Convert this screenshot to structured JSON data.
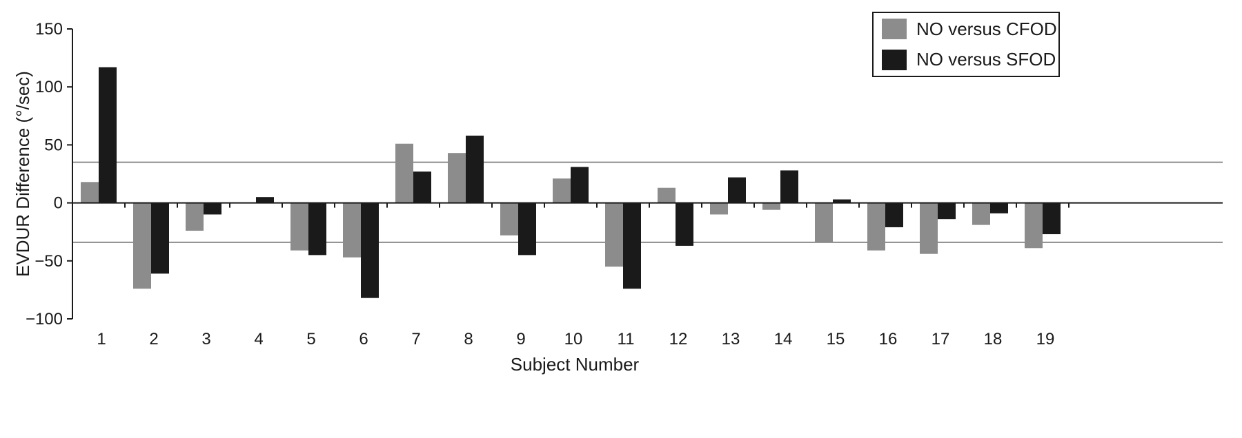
{
  "chart_data": {
    "type": "bar",
    "xlabel": "Subject Number",
    "ylabel": "EVDUR Difference (°/sec)",
    "ylim": [
      -100,
      150
    ],
    "yticks": [
      -100,
      -50,
      0,
      50,
      100,
      150
    ],
    "ytick_labels": [
      "−100",
      "−50",
      "0",
      "50",
      "100",
      "150"
    ],
    "categories": [
      "1",
      "2",
      "3",
      "4",
      "5",
      "6",
      "7",
      "8",
      "9",
      "10",
      "11",
      "12",
      "13",
      "14",
      "15",
      "16",
      "17",
      "18",
      "19"
    ],
    "series": [
      {
        "name": "NO versus CFOD",
        "color": "#8c8c8c",
        "values": [
          18,
          -74,
          -24,
          0,
          -41,
          -47,
          51,
          43,
          -28,
          21,
          -55,
          13,
          -10,
          -6,
          -34,
          -41,
          -44,
          -19,
          -39
        ]
      },
      {
        "name": "NO versus SFOD",
        "color": "#1a1a1a",
        "values": [
          117,
          -61,
          -10,
          5,
          -45,
          -82,
          27,
          58,
          -45,
          31,
          -74,
          -37,
          22,
          28,
          3,
          -21,
          -14,
          -9,
          -27
        ]
      }
    ],
    "reference_lines": [
      35,
      -34
    ],
    "reference_line_color": "#8c8c8c",
    "grid": false,
    "legend_position": "top-right"
  }
}
